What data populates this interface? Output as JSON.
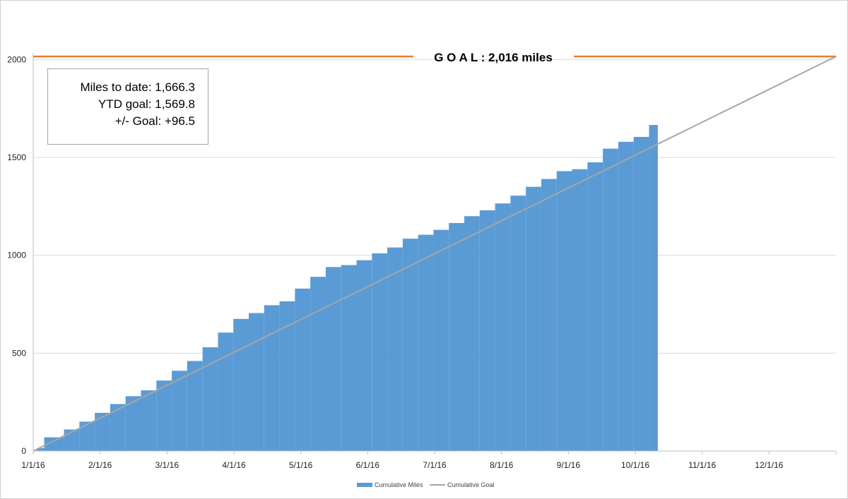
{
  "colors": {
    "cumulative_miles": "#5b9bd5",
    "cumulative_goal": "#a5a5a5",
    "goal_line": "#ed7d31",
    "gridline": "#d9d9d9",
    "axis": "#bfbfbf"
  },
  "goal_label": "G O A L : 2,016 miles",
  "stats": {
    "miles_to_date": "Miles to date: 1,666.3",
    "ytd_goal": "YTD goal: 1,569.8",
    "plus_minus_goal": "+/- Goal: +96.5"
  },
  "chart_data": {
    "type": "area",
    "title": "",
    "xlabel": "",
    "ylabel": "",
    "x_ticks": [
      "1/1/16",
      "2/1/16",
      "3/1/16",
      "4/1/16",
      "5/1/16",
      "6/1/16",
      "7/1/16",
      "8/1/16",
      "9/1/16",
      "10/1/16",
      "11/1/16",
      "12/1/16"
    ],
    "x_range": [
      "2016-01-01",
      "2016-12-31"
    ],
    "y_ticks": [
      0,
      500,
      1000,
      1500,
      2000
    ],
    "ylim": [
      0,
      2016
    ],
    "grid": "horizontal",
    "legend_position": "bottom",
    "goal_value": 2016,
    "series": [
      {
        "name": "Cumulative Miles",
        "type": "area",
        "x": [
          "2016-01-06",
          "2016-01-15",
          "2016-01-22",
          "2016-01-29",
          "2016-02-05",
          "2016-02-12",
          "2016-02-19",
          "2016-02-26",
          "2016-03-04",
          "2016-03-11",
          "2016-03-18",
          "2016-03-25",
          "2016-04-01",
          "2016-04-08",
          "2016-04-15",
          "2016-04-22",
          "2016-04-29",
          "2016-05-06",
          "2016-05-13",
          "2016-05-20",
          "2016-05-27",
          "2016-06-03",
          "2016-06-10",
          "2016-06-17",
          "2016-06-24",
          "2016-07-01",
          "2016-07-08",
          "2016-07-15",
          "2016-07-22",
          "2016-07-29",
          "2016-08-05",
          "2016-08-12",
          "2016-08-19",
          "2016-08-26",
          "2016-09-02",
          "2016-09-09",
          "2016-09-16",
          "2016-09-23",
          "2016-09-30",
          "2016-10-07",
          "2016-10-11"
        ],
        "values": [
          15,
          70,
          110,
          150,
          195,
          240,
          280,
          310,
          360,
          410,
          460,
          530,
          605,
          675,
          705,
          745,
          765,
          830,
          890,
          940,
          950,
          975,
          1010,
          1040,
          1085,
          1105,
          1130,
          1165,
          1200,
          1230,
          1265,
          1305,
          1350,
          1390,
          1430,
          1440,
          1475,
          1545,
          1580,
          1605,
          1666
        ]
      },
      {
        "name": "Cumulative Goal",
        "type": "line",
        "x": [
          "2016-01-01",
          "2016-12-31"
        ],
        "values": [
          0,
          2016
        ]
      }
    ]
  }
}
